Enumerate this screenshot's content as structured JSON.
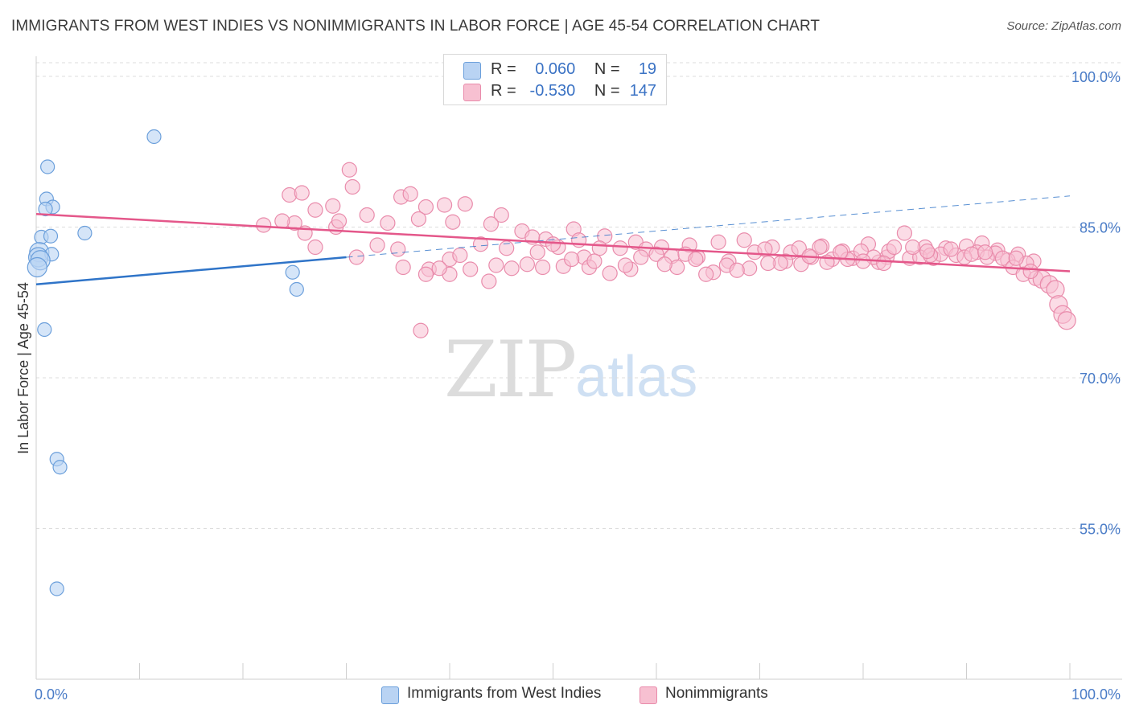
{
  "title": "IMMIGRANTS FROM WEST INDIES VS NONIMMIGRANTS IN LABOR FORCE | AGE 45-54 CORRELATION CHART",
  "source": "Source: ZipAtlas.com",
  "watermark": {
    "zip": "ZIP",
    "atlas": "atlas"
  },
  "colors": {
    "blue_fill": "#b9d3f3",
    "blue_stroke": "#6b9fdb",
    "blue_line": "#2f74c8",
    "pink_fill": "#f7c0d1",
    "pink_stroke": "#e98bab",
    "pink_line": "#e4578a",
    "grid": "#dddddd",
    "tick_text": "#4a7cc7"
  },
  "legend": {
    "r_label": "R =",
    "n_label": "N =",
    "rows": [
      {
        "r": "0.060",
        "n": "19"
      },
      {
        "r": "-0.530",
        "n": "147"
      }
    ]
  },
  "chart_data": {
    "type": "scatter",
    "ylabel": "In Labor Force | Age 45-54",
    "xlim": [
      0,
      100
    ],
    "ylim": [
      40,
      102
    ],
    "x_tick_labels": [
      "0.0%",
      "100.0%"
    ],
    "y_ticks": [
      {
        "value": 100,
        "label": "100.0%"
      },
      {
        "value": 85,
        "label": "85.0%"
      },
      {
        "value": 70,
        "label": "70.0%"
      },
      {
        "value": 55,
        "label": "55.0%"
      }
    ],
    "grid": true,
    "series": [
      {
        "name": "Immigrants from West Indies",
        "color": "blue",
        "trend": {
          "x0": 0,
          "y0": 79.3,
          "x1": 30,
          "y1": 82.0,
          "dashed_to_x": 100,
          "dashed_to_y": 88.1
        },
        "points": [
          [
            11.4,
            94.0
          ],
          [
            1.1,
            91.0
          ],
          [
            1.0,
            87.8
          ],
          [
            1.6,
            87.0
          ],
          [
            0.9,
            86.8
          ],
          [
            4.7,
            84.4
          ],
          [
            0.5,
            84.0
          ],
          [
            1.4,
            84.1
          ],
          [
            0.3,
            82.5
          ],
          [
            1.5,
            82.3
          ],
          [
            0.2,
            82.0
          ],
          [
            0.4,
            81.7
          ],
          [
            0.1,
            81.0
          ],
          [
            24.8,
            80.5
          ],
          [
            25.2,
            78.8
          ],
          [
            0.8,
            74.8
          ],
          [
            2.0,
            61.9
          ],
          [
            2.3,
            61.1
          ],
          [
            2.0,
            49.0
          ]
        ]
      },
      {
        "name": "Nonimmigrants",
        "color": "pink",
        "trend": {
          "x0": 0,
          "y0": 86.3,
          "x1": 100,
          "y1": 80.6
        },
        "points": [
          [
            30.3,
            90.7
          ],
          [
            30.6,
            89.0
          ],
          [
            24.5,
            88.2
          ],
          [
            25.7,
            88.4
          ],
          [
            35.3,
            88.0
          ],
          [
            36.2,
            88.3
          ],
          [
            37.7,
            87.0
          ],
          [
            39.5,
            87.2
          ],
          [
            41.5,
            87.3
          ],
          [
            27.0,
            86.7
          ],
          [
            28.7,
            87.1
          ],
          [
            32.0,
            86.2
          ],
          [
            45.0,
            86.2
          ],
          [
            22.0,
            85.2
          ],
          [
            25.0,
            85.4
          ],
          [
            26.0,
            84.4
          ],
          [
            29.0,
            85.0
          ],
          [
            29.3,
            85.6
          ],
          [
            34.0,
            85.4
          ],
          [
            37.0,
            85.8
          ],
          [
            40.3,
            85.5
          ],
          [
            44.0,
            85.3
          ],
          [
            47.0,
            84.6
          ],
          [
            49.3,
            83.8
          ],
          [
            52.0,
            84.8
          ],
          [
            55.0,
            84.1
          ],
          [
            58.0,
            83.5
          ],
          [
            60.5,
            83.0
          ],
          [
            63.2,
            83.2
          ],
          [
            66.0,
            83.5
          ],
          [
            68.5,
            83.7
          ],
          [
            71.2,
            83.0
          ],
          [
            73.0,
            82.5
          ],
          [
            76.0,
            83.1
          ],
          [
            78.0,
            82.6
          ],
          [
            80.5,
            83.3
          ],
          [
            82.3,
            82.0
          ],
          [
            84.0,
            84.4
          ],
          [
            86.0,
            83.0
          ],
          [
            88.0,
            82.9
          ],
          [
            90.0,
            83.1
          ],
          [
            91.5,
            83.4
          ],
          [
            93.0,
            82.7
          ],
          [
            95.0,
            82.3
          ],
          [
            96.5,
            81.6
          ],
          [
            27.0,
            83.0
          ],
          [
            31.0,
            82.0
          ],
          [
            33.0,
            83.2
          ],
          [
            35.0,
            82.8
          ],
          [
            40.0,
            81.8
          ],
          [
            43.0,
            83.3
          ],
          [
            45.5,
            82.9
          ],
          [
            48.0,
            84.0
          ],
          [
            50.5,
            83.0
          ],
          [
            53.0,
            82.0
          ],
          [
            56.5,
            82.9
          ],
          [
            59.0,
            82.8
          ],
          [
            61.5,
            82.1
          ],
          [
            64.0,
            82.0
          ],
          [
            67.0,
            81.6
          ],
          [
            69.5,
            82.5
          ],
          [
            72.5,
            81.6
          ],
          [
            75.0,
            82.0
          ],
          [
            77.0,
            81.8
          ],
          [
            79.0,
            81.9
          ],
          [
            81.5,
            81.5
          ],
          [
            84.5,
            81.9
          ],
          [
            86.8,
            81.9
          ],
          [
            89.0,
            82.2
          ],
          [
            91.0,
            82.5
          ],
          [
            92.8,
            82.4
          ],
          [
            94.0,
            81.7
          ],
          [
            95.8,
            81.4
          ],
          [
            35.5,
            81.0
          ],
          [
            38.0,
            80.8
          ],
          [
            42.0,
            80.8
          ],
          [
            44.5,
            81.2
          ],
          [
            47.5,
            81.3
          ],
          [
            51.0,
            81.1
          ],
          [
            53.5,
            81.0
          ],
          [
            55.5,
            80.4
          ],
          [
            57.5,
            80.8
          ],
          [
            62.0,
            81.0
          ],
          [
            65.5,
            80.5
          ],
          [
            69.0,
            80.9
          ],
          [
            72.0,
            81.4
          ],
          [
            74.0,
            81.3
          ],
          [
            76.5,
            81.5
          ],
          [
            78.5,
            81.8
          ],
          [
            82.5,
            82.6
          ],
          [
            85.5,
            82.0
          ],
          [
            87.5,
            82.3
          ],
          [
            89.8,
            82.0
          ],
          [
            93.5,
            81.9
          ],
          [
            40.0,
            80.3
          ],
          [
            43.8,
            79.6
          ],
          [
            49.0,
            81.0
          ],
          [
            50.0,
            83.3
          ],
          [
            52.5,
            83.7
          ],
          [
            54.5,
            82.9
          ],
          [
            58.5,
            82.0
          ],
          [
            60.0,
            82.3
          ],
          [
            62.8,
            82.3
          ],
          [
            64.8,
            80.3
          ],
          [
            66.8,
            81.2
          ],
          [
            70.5,
            82.8
          ],
          [
            73.8,
            82.9
          ],
          [
            75.8,
            83.0
          ],
          [
            77.8,
            82.5
          ],
          [
            79.8,
            82.6
          ],
          [
            81.0,
            82.0
          ],
          [
            83.0,
            83.0
          ],
          [
            84.8,
            83.0
          ],
          [
            86.5,
            82.2
          ],
          [
            88.5,
            82.8
          ],
          [
            90.5,
            82.3
          ],
          [
            92.0,
            82.0
          ],
          [
            94.5,
            81.0
          ],
          [
            95.5,
            80.3
          ],
          [
            96.7,
            79.9
          ],
          [
            97.3,
            79.8
          ],
          [
            98.0,
            79.3
          ],
          [
            98.6,
            78.8
          ],
          [
            98.9,
            77.3
          ],
          [
            99.3,
            76.3
          ],
          [
            99.7,
            75.7
          ],
          [
            37.7,
            80.3
          ],
          [
            39.0,
            80.9
          ],
          [
            41.0,
            82.2
          ],
          [
            46.0,
            80.9
          ],
          [
            48.5,
            82.5
          ],
          [
            51.8,
            81.8
          ],
          [
            54.0,
            81.6
          ],
          [
            57.0,
            81.2
          ],
          [
            60.8,
            81.3
          ],
          [
            63.8,
            81.8
          ],
          [
            67.8,
            80.7
          ],
          [
            70.8,
            81.4
          ],
          [
            74.8,
            82.1
          ],
          [
            80.0,
            81.6
          ],
          [
            82.0,
            81.4
          ],
          [
            86.2,
            82.6
          ],
          [
            91.8,
            82.5
          ],
          [
            94.8,
            81.9
          ],
          [
            96.2,
            80.6
          ],
          [
            37.2,
            74.7
          ],
          [
            23.8,
            85.6
          ]
        ]
      }
    ]
  },
  "bottom_legend": [
    {
      "label": "Immigrants from West Indies"
    },
    {
      "label": "Nonimmigrants"
    }
  ]
}
